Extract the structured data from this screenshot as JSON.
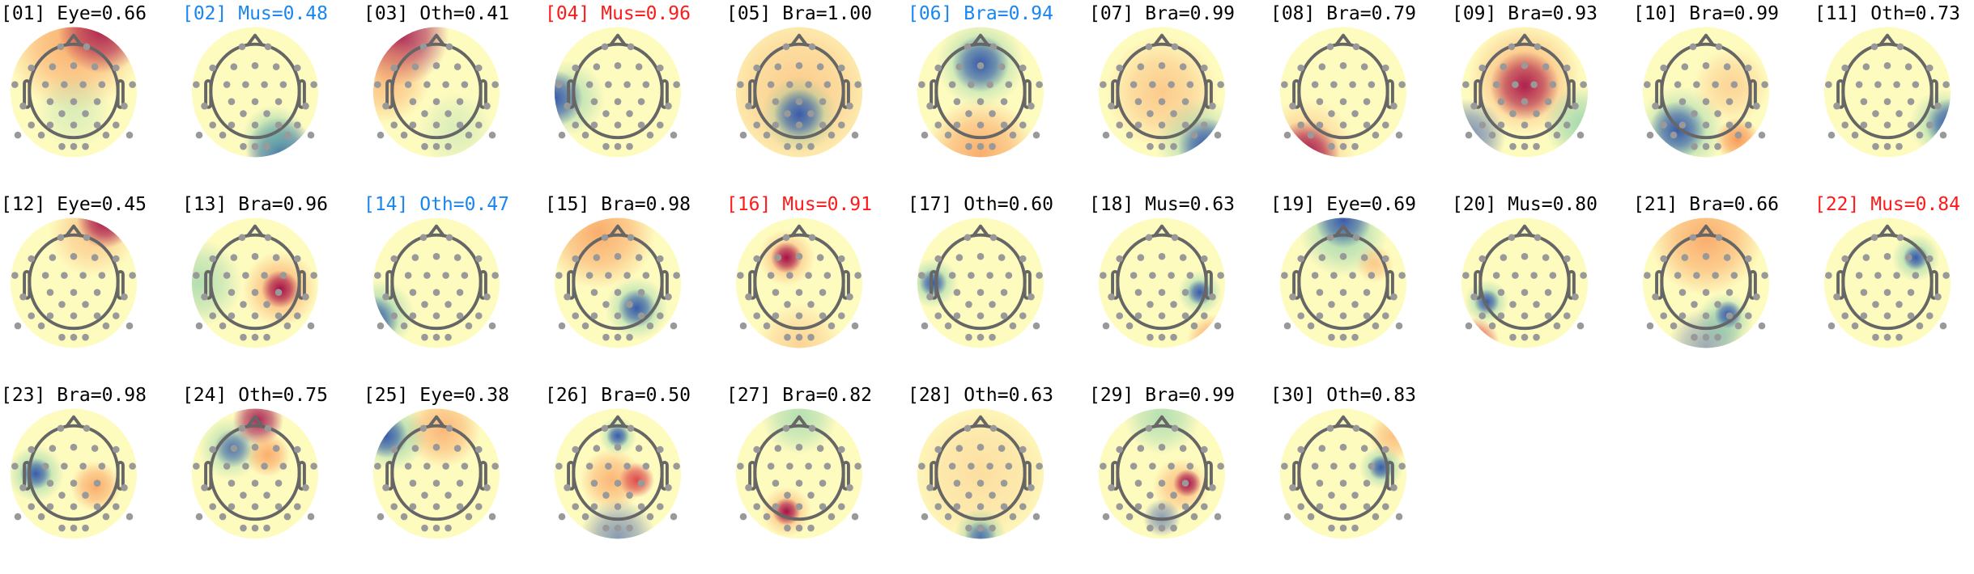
{
  "chart_data": {
    "type": "heatmap",
    "subtype": "topomap-grid",
    "colormap": "Spectral_r",
    "colors": {
      "normal": "#000000",
      "highlight_blue": "#1a86f0",
      "highlight_red": "#ff1a1a"
    },
    "components": [
      {
        "title": "[01] Eye=0.66",
        "label": "Eye",
        "score": 0.66,
        "color": "normal"
      },
      {
        "title": "[02] Mus=0.48",
        "label": "Mus",
        "score": 0.48,
        "color": "highlight_blue"
      },
      {
        "title": "[03] Oth=0.41",
        "label": "Oth",
        "score": 0.41,
        "color": "normal"
      },
      {
        "title": "[04] Mus=0.96",
        "label": "Mus",
        "score": 0.96,
        "color": "highlight_red"
      },
      {
        "title": "[05] Bra=1.00",
        "label": "Bra",
        "score": 1.0,
        "color": "normal"
      },
      {
        "title": "[06] Bra=0.94",
        "label": "Bra",
        "score": 0.94,
        "color": "highlight_blue"
      },
      {
        "title": "[07] Bra=0.99",
        "label": "Bra",
        "score": 0.99,
        "color": "normal"
      },
      {
        "title": "[08] Bra=0.79",
        "label": "Bra",
        "score": 0.79,
        "color": "normal"
      },
      {
        "title": "[09] Bra=0.93",
        "label": "Bra",
        "score": 0.93,
        "color": "normal"
      },
      {
        "title": "[10] Bra=0.99",
        "label": "Bra",
        "score": 0.99,
        "color": "normal"
      },
      {
        "title": "[11] Oth=0.73",
        "label": "Oth",
        "score": 0.73,
        "color": "normal"
      },
      {
        "title": "[12] Eye=0.45",
        "label": "Eye",
        "score": 0.45,
        "color": "normal"
      },
      {
        "title": "[13] Bra=0.96",
        "label": "Bra",
        "score": 0.96,
        "color": "normal"
      },
      {
        "title": "[14] Oth=0.47",
        "label": "Oth",
        "score": 0.47,
        "color": "highlight_blue"
      },
      {
        "title": "[15] Bra=0.98",
        "label": "Bra",
        "score": 0.98,
        "color": "normal"
      },
      {
        "title": "[16] Mus=0.91",
        "label": "Mus",
        "score": 0.91,
        "color": "highlight_red"
      },
      {
        "title": "[17] Oth=0.60",
        "label": "Oth",
        "score": 0.6,
        "color": "normal"
      },
      {
        "title": "[18] Mus=0.63",
        "label": "Mus",
        "score": 0.63,
        "color": "normal"
      },
      {
        "title": "[19] Eye=0.69",
        "label": "Eye",
        "score": 0.69,
        "color": "normal"
      },
      {
        "title": "[20] Mus=0.80",
        "label": "Mus",
        "score": 0.8,
        "color": "normal"
      },
      {
        "title": "[21] Bra=0.66",
        "label": "Bra",
        "score": 0.66,
        "color": "normal"
      },
      {
        "title": "[22] Mus=0.84",
        "label": "Mus",
        "score": 0.84,
        "color": "highlight_red"
      },
      {
        "title": "[23] Bra=0.98",
        "label": "Bra",
        "score": 0.98,
        "color": "normal"
      },
      {
        "title": "[24] Oth=0.75",
        "label": "Oth",
        "score": 0.75,
        "color": "normal"
      },
      {
        "title": "[25] Eye=0.38",
        "label": "Eye",
        "score": 0.38,
        "color": "normal"
      },
      {
        "title": "[26] Bra=0.50",
        "label": "Bra",
        "score": 0.5,
        "color": "normal"
      },
      {
        "title": "[27] Bra=0.82",
        "label": "Bra",
        "score": 0.82,
        "color": "normal"
      },
      {
        "title": "[28] Oth=0.63",
        "label": "Oth",
        "score": 0.63,
        "color": "normal"
      },
      {
        "title": "[29] Bra=0.99",
        "label": "Bra",
        "score": 0.99,
        "color": "normal"
      },
      {
        "title": "[30] Oth=0.83",
        "label": "Oth",
        "score": 0.83,
        "color": "normal"
      }
    ]
  }
}
